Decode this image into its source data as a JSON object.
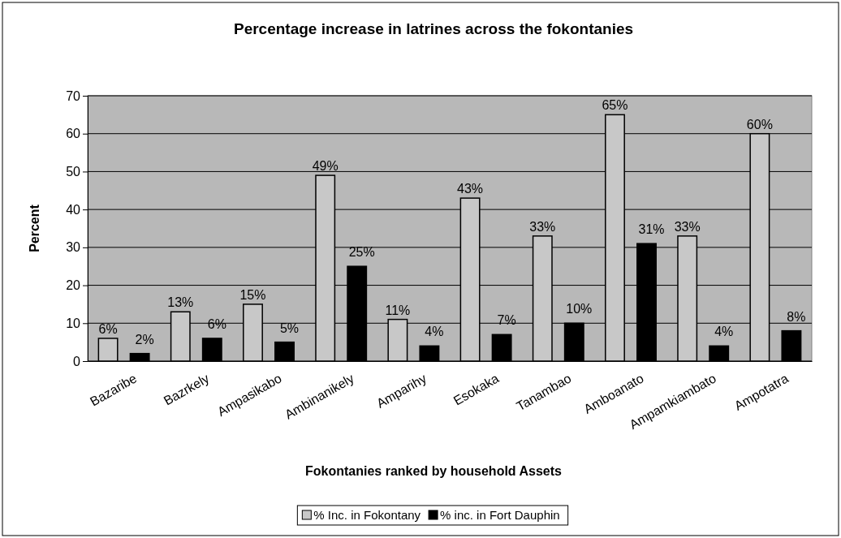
{
  "chart_data": {
    "type": "bar",
    "title": "Percentage increase in latrines across the fokontanies",
    "xlabel": "Fokontanies ranked by household Assets",
    "ylabel": "Percent",
    "categories": [
      "Bazaribe",
      "Bazrkely",
      "Ampasikabo",
      "Ambinanikely",
      "Amparihy",
      "Esokaka",
      "Tanambao",
      "Amboanato",
      "Ampamkiambato",
      "Ampotatra"
    ],
    "series": [
      {
        "name": "% Inc. in Fokontany",
        "color": "#c8c8c8",
        "values": [
          6,
          13,
          15,
          49,
          11,
          43,
          33,
          65,
          33,
          60
        ],
        "value_labels": [
          "6%",
          "13%",
          "15%",
          "49%",
          "11%",
          "43%",
          "33%",
          "65%",
          "33%",
          "60%"
        ]
      },
      {
        "name": "% inc. in Fort Dauphin",
        "color": "#000000",
        "values": [
          2,
          6,
          5,
          25,
          4,
          7,
          10,
          31,
          4,
          8
        ],
        "value_labels": [
          "2%",
          "6%",
          "5%",
          "25%",
          "4%",
          "7%",
          "10%",
          "31%",
          "4%",
          "8%"
        ]
      }
    ],
    "ylim": [
      0,
      70
    ],
    "yticks": [
      0,
      10,
      20,
      30,
      40,
      50,
      60,
      70
    ],
    "grid": "y",
    "legend": "bottom"
  }
}
